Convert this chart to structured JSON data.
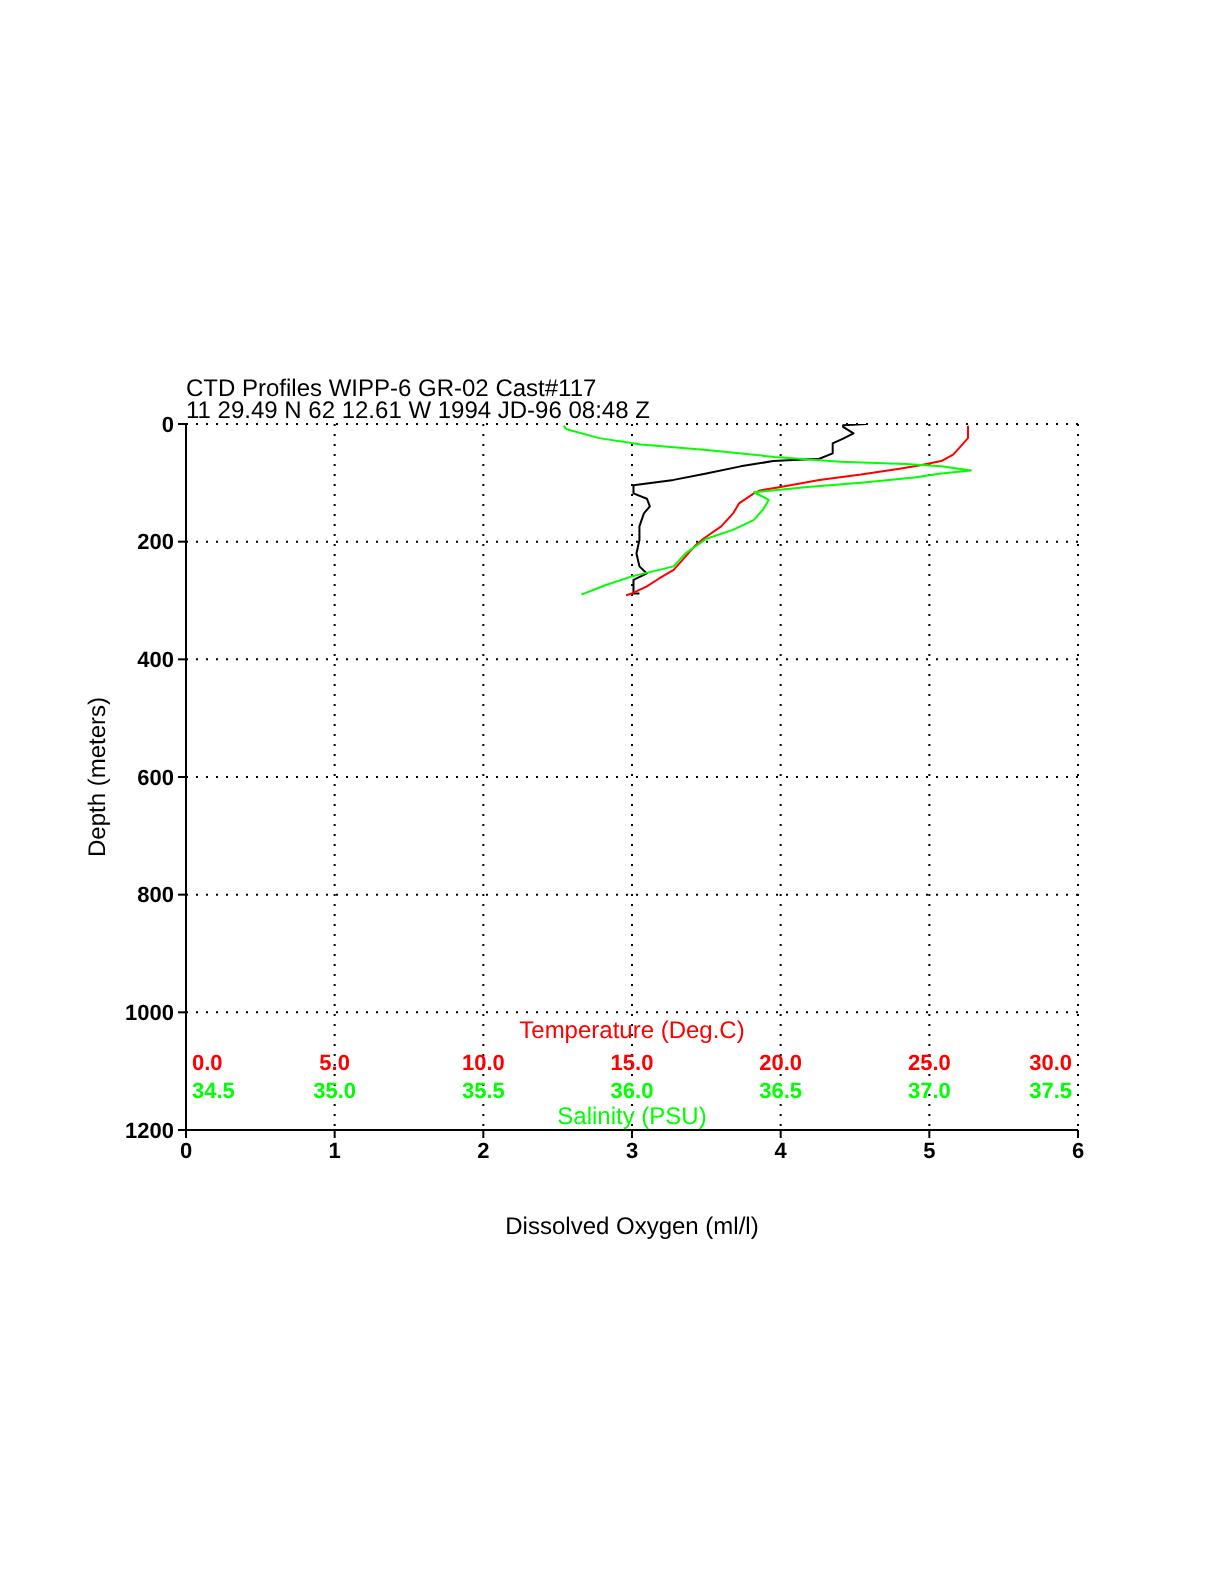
{
  "chart_data": [
    {
      "type": "line",
      "title": "CTD Profiles WIPP-6 GR-02 Cast#117",
      "subtitle": "11 29.49 N 62 12.61 W 1994 JD-96 08:48 Z",
      "xlabel": "Dissolved Oxygen (ml/l)",
      "ylabel": "Depth (meters)",
      "x2label": "Temperature (Deg.C)",
      "xlim": [
        0,
        6
      ],
      "xticks": [
        0,
        1,
        2,
        3,
        4,
        5,
        6
      ],
      "ylim": [
        1200,
        0
      ],
      "yticks": [
        0,
        200,
        400,
        600,
        800,
        1000,
        1200
      ],
      "x2lim": [
        0,
        30
      ],
      "x2ticks": [
        {
          "value": 0,
          "label": "0.0"
        },
        {
          "value": 5,
          "label": "5.0"
        },
        {
          "value": 10,
          "label": "10.0"
        },
        {
          "value": 15,
          "label": "15.0"
        },
        {
          "value": 20,
          "label": "20.0"
        },
        {
          "value": 25,
          "label": "25.0"
        },
        {
          "value": 30,
          "label": "30.0"
        }
      ],
      "grid": true,
      "series": [
        {
          "color": "#000000",
          "x": [
            4.58,
            4.42,
            4.42,
            4.49,
            4.42,
            4.35,
            4.35,
            4.26,
            3.95,
            3.73,
            3.5,
            3.28,
            3.01,
            3.01,
            3.1,
            3.12,
            3.08,
            3.05,
            3.05,
            3.03,
            3.05,
            3.1,
            3.01,
            3.01,
            3.05
          ],
          "values": [
            0,
            2,
            5,
            16,
            25,
            33,
            50,
            59,
            63,
            72,
            84,
            95,
            104,
            118,
            127,
            140,
            152,
            174,
            197,
            220,
            242,
            254,
            265,
            288,
            288
          ]
        },
        {
          "color": "#ff0000",
          "axis": "x2",
          "x": [
            26.3,
            26.3,
            26.0,
            25.8,
            25.4,
            24.7,
            24.0,
            22.7,
            21.3,
            20.0,
            19.3,
            19.1,
            18.6,
            18.4,
            18.0,
            17.4,
            17.1,
            16.7,
            16.4,
            15.9,
            15.5,
            15.0,
            14.8
          ],
          "values": [
            3,
            24,
            41,
            52,
            63,
            70,
            76,
            86,
            95,
            107,
            113,
            118,
            135,
            152,
            174,
            195,
            208,
            231,
            248,
            263,
            276,
            288,
            291
          ]
        }
      ]
    },
    {
      "type": "line",
      "xlabel": "Salinity (PSU)",
      "xlim": [
        34.5,
        37.5
      ],
      "xticks": [
        34.5,
        {
          "value": 35,
          "label": "35.0"
        },
        35.5,
        {
          "value": 36,
          "label": "36.0"
        },
        36.5,
        {
          "value": 37,
          "label": "37.0"
        },
        37.5
      ],
      "ylim": [
        1200,
        0
      ],
      "tick_labels": "x",
      "series": [
        {
          "color": "#00ff00",
          "x": [
            35.77,
            35.78,
            35.89,
            36.03,
            36.25,
            36.48,
            36.7,
            36.92,
            37.04,
            37.14,
            37.04,
            36.95,
            36.77,
            36.59,
            36.41,
            36.46,
            36.44,
            36.41,
            36.34,
            36.25,
            36.18,
            36.14,
            36.0,
            35.91,
            35.83
          ],
          "values": [
            3,
            9,
            24,
            35,
            44,
            56,
            64,
            68,
            72,
            79,
            84,
            91,
            100,
            107,
            116,
            129,
            146,
            163,
            180,
            195,
            220,
            242,
            259,
            274,
            290
          ]
        }
      ]
    }
  ]
}
